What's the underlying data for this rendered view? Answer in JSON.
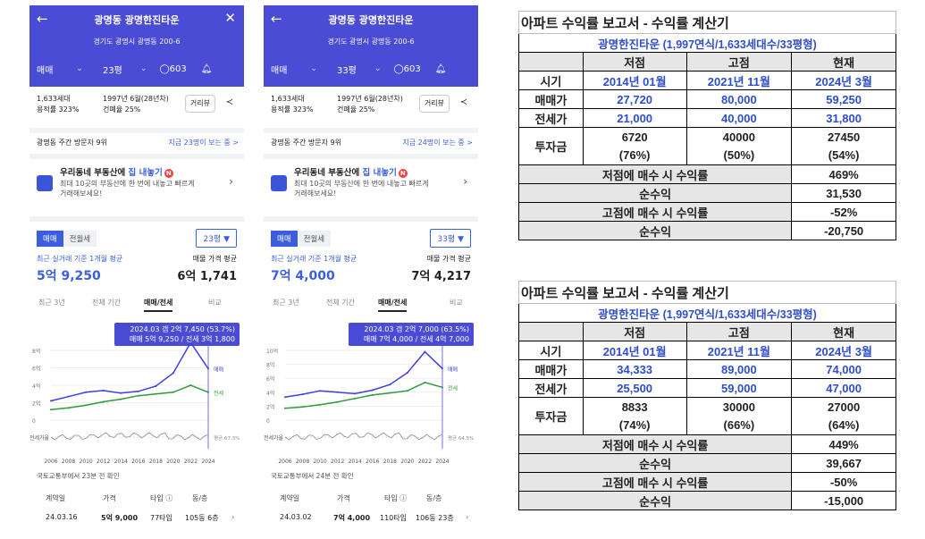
{
  "phones": [
    {
      "title": "광명동 광명한진타운",
      "address": "경기도 광명시 광명동 200-6",
      "tabs": {
        "deal": "매매",
        "area": "23평",
        "comments": "603"
      },
      "info": {
        "households": "1,633세대",
        "far": "용적률 323%",
        "built": "1997년 6월(28년차)",
        "bcr": "건폐율 25%",
        "distance_btn": "거리뷰"
      },
      "visit_left": "광명동 주간 방문자 9위",
      "visit_right": "지금 23명이 보는 중 >",
      "promo_title_a": "우리동네 부동산에 ",
      "promo_title_b": "집 내놓기",
      "promo_badge": "N",
      "promo_body": "최대 10곳의 부동산에 한 번에 내놓고 빠르게 거래해보세요!",
      "seg_on": "매매",
      "seg_off": "전월세",
      "area_select": "23평 ▼",
      "price_label": "최근 실거래 기준 1개월 평균",
      "price_value": "5억 9,250",
      "ask_label": "매물 가격 평균",
      "ask_value": "6억 1,741",
      "period_tabs": [
        "최근 3년",
        "전체 기간",
        "매매/전세",
        "비교"
      ],
      "tip_line1": "2024.03  갭 2억 7,450 (53.7%)",
      "tip_line2": "매매 5억 9,250 / 전세 3억 1,800",
      "source": "국토교통부에서 23분 전 확인",
      "tx_head": [
        "계약일",
        "가격",
        "타입 ⓘ",
        "동/층"
      ],
      "tx_row": [
        "24.03.16",
        "5억 9,000",
        "77타입",
        "105동 6층",
        "›"
      ],
      "chart_data": {
        "type": "line",
        "x_ticks": [
          "2006",
          "2008",
          "2010",
          "2012",
          "2014",
          "2016",
          "2018",
          "2020",
          "2022",
          "2024"
        ],
        "y_ticks": [
          "8억",
          "6억",
          "4억",
          "2억",
          "0"
        ],
        "ratio_label": "전세가율",
        "ratio_end": "평균 67.3%",
        "series": [
          {
            "name": "매매",
            "color": "#3b3fe0",
            "values": [
              2.2,
              2.7,
              3.2,
              3.4,
              3.1,
              3.3,
              3.9,
              5.4,
              8.9,
              5.9
            ]
          },
          {
            "name": "전세",
            "color": "#2e9a3a",
            "values": [
              1.2,
              1.4,
              1.7,
              2.1,
              2.4,
              2.8,
              3.0,
              3.2,
              4.0,
              3.2
            ]
          }
        ]
      }
    },
    {
      "title": "광명동 광명한진타운",
      "address": "경기도 광명시 광명동 200-6",
      "tabs": {
        "deal": "매매",
        "area": "33평",
        "comments": "603"
      },
      "info": {
        "households": "1,633세대",
        "far": "용적률 323%",
        "built": "1997년 6월(28년차)",
        "bcr": "건폐율 25%",
        "distance_btn": "거리뷰"
      },
      "visit_left": "광명동 주간 방문자 9위",
      "visit_right": "지금 24명이 보는 중 >",
      "promo_title_a": "우리동네 부동산에 ",
      "promo_title_b": "집 내놓기",
      "promo_badge": "N",
      "promo_body": "최대 10곳의 부동산에 한 번에 내놓고 빠르게 거래해보세요!",
      "seg_on": "매매",
      "seg_off": "전월세",
      "area_select": "33평 ▼",
      "price_label": "최근 실거래 기준 1개월 평균",
      "price_value": "7억 4,000",
      "ask_label": "매물 가격 평균",
      "ask_value": "7억 4,217",
      "period_tabs": [
        "최근 3년",
        "전체 기간",
        "매매/전세",
        "비교"
      ],
      "tip_line1": "2024.03  갭 2억 7,000 (63.5%)",
      "tip_line2": "매매 7억 4,000 / 전세 4억 7,000",
      "source": "국토교통부에서 24분 전 확인",
      "tx_head": [
        "계약일",
        "가격",
        "타입 ⓘ",
        "동/층"
      ],
      "tx_row": [
        "24.03.02",
        "7억 4,000",
        "110타입",
        "106동 23층",
        "›"
      ],
      "chart_data": {
        "type": "line",
        "x_ticks": [
          "2006",
          "2008",
          "2010",
          "2012",
          "2014",
          "2016",
          "2018",
          "2020",
          "2022",
          "2024"
        ],
        "y_ticks": [
          "10억",
          "8억",
          "6억",
          "4억",
          "2억",
          "0"
        ],
        "ratio_label": "전세가율",
        "ratio_end": "평균 64.5%",
        "series": [
          {
            "name": "매매",
            "color": "#3b3fe0",
            "values": [
              3.3,
              3.7,
              4.2,
              4.0,
              3.8,
              4.3,
              5.1,
              6.8,
              9.8,
              7.4
            ]
          },
          {
            "name": "전세",
            "color": "#2e9a3a",
            "values": [
              1.7,
              1.9,
              2.2,
              2.6,
              3.1,
              3.6,
              3.9,
              4.2,
              5.4,
              4.7
            ]
          }
        ]
      }
    }
  ],
  "reports": [
    {
      "title": "아파트 수익률 보고서 - 수익률 계산기",
      "subtitle": "광명한진타운 (1,997연식/1,633세대수/33평형)",
      "headers": [
        "저점",
        "고점",
        "현재"
      ],
      "rows": [
        {
          "label": "시기",
          "values": [
            "2014년 01월",
            "2021년 11월",
            "2024년 3월"
          ]
        },
        {
          "label": "매매가",
          "values": [
            "27,720",
            "80,000",
            "59,250"
          ]
        },
        {
          "label": "전세가",
          "values": [
            "21,000",
            "40,000",
            "31,800"
          ]
        }
      ],
      "invest_label": "투자금",
      "invest": [
        "6720",
        "40000",
        "27450"
      ],
      "invest_pct": [
        "(76%)",
        "(50%)",
        "(54%)"
      ],
      "low_buy_label": "저점에 매수 시 수익률",
      "low_buy_value": "469%",
      "net_label": "순수익",
      "low_net": "31,530",
      "high_buy_label": "고점에 매수 시 수익률",
      "high_buy_value": "-52%",
      "high_net": "-20,750"
    },
    {
      "title": "아파트 수익률 보고서 - 수익률 계산기",
      "subtitle": "광명한진타운 (1,997연식/1,633세대수/33평형)",
      "headers": [
        "저점",
        "고점",
        "현재"
      ],
      "rows": [
        {
          "label": "시기",
          "values": [
            "2014년 01월",
            "2021년 11월",
            "2024년 3월"
          ]
        },
        {
          "label": "매매가",
          "values": [
            "34,333",
            "89,000",
            "74,000"
          ]
        },
        {
          "label": "전세가",
          "values": [
            "25,500",
            "59,000",
            "47,000"
          ]
        }
      ],
      "invest_label": "투자금",
      "invest": [
        "8833",
        "30000",
        "27000"
      ],
      "invest_pct": [
        "(74%)",
        "(66%)",
        "(64%)"
      ],
      "low_buy_label": "저점에 매수 시 수익률",
      "low_buy_value": "449%",
      "net_label": "순수익",
      "low_net": "39,667",
      "high_buy_label": "고점에 매수 시 수익률",
      "high_buy_value": "-50%",
      "high_net": "-15,000"
    }
  ]
}
